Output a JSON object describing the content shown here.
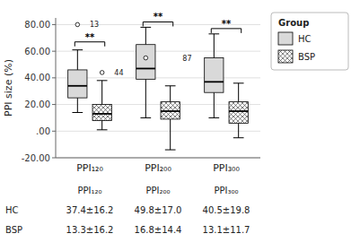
{
  "chart_data": {
    "type": "box",
    "ylabel": "PPI size (%)",
    "categories": [
      "PPI₁₂₀",
      "PPI₂₀₀",
      "PPI₃₀₀"
    ],
    "legend_title": "Group",
    "legend": "right",
    "grid": true,
    "ylim": [
      -20,
      85
    ],
    "yticks": [
      {
        "value": -20,
        "label": "-20.00"
      },
      {
        "value": 0,
        "label": ".00"
      },
      {
        "value": 20,
        "label": "20.00"
      },
      {
        "value": 40,
        "label": "40.00"
      },
      {
        "value": 60,
        "label": "60.00"
      },
      {
        "value": 80,
        "label": "80.00"
      }
    ],
    "series": [
      {
        "name": "HC",
        "color": "#d9d9d9",
        "q1": [
          25,
          39,
          29
        ],
        "median": [
          34,
          47,
          37
        ],
        "q3": [
          46,
          65,
          55
        ],
        "whisker_low": [
          14,
          10,
          10
        ],
        "whisker_high": [
          61,
          78,
          73
        ],
        "outliers": [
          [
            80
          ],
          [
            55
          ],
          []
        ],
        "stats": [
          "37.4±16.2",
          "49.8±17.0",
          "40.5±19.8"
        ]
      },
      {
        "name": "BSP",
        "color": "#ffffff",
        "q1": [
          8,
          9,
          6
        ],
        "median": [
          13,
          15,
          15
        ],
        "q3": [
          20,
          22,
          22
        ],
        "whisker_low": [
          1,
          -14,
          -5
        ],
        "whisker_high": [
          38,
          34,
          36
        ],
        "outliers": [
          [
            44
          ],
          [],
          []
        ],
        "stats": [
          "13.3±16.2",
          "16.8±14.4",
          "13.1±11.7"
        ]
      }
    ],
    "annotations": [
      {
        "category": "PPI₁₂₀",
        "series": "HC",
        "y": 80,
        "text": "13"
      },
      {
        "category": "PPI₁₂₀",
        "series": "BSP",
        "y": 44,
        "text": "44"
      },
      {
        "category": "PPI₂₀₀",
        "series": "BSP",
        "y": 55,
        "text": "87"
      }
    ],
    "significance": [
      {
        "category": "PPI₁₂₀",
        "y": 67,
        "label": "**"
      },
      {
        "category": "PPI₂₀₀",
        "y": 82,
        "label": "**"
      },
      {
        "category": "PPI₃₀₀",
        "y": 77,
        "label": "**"
      }
    ]
  }
}
